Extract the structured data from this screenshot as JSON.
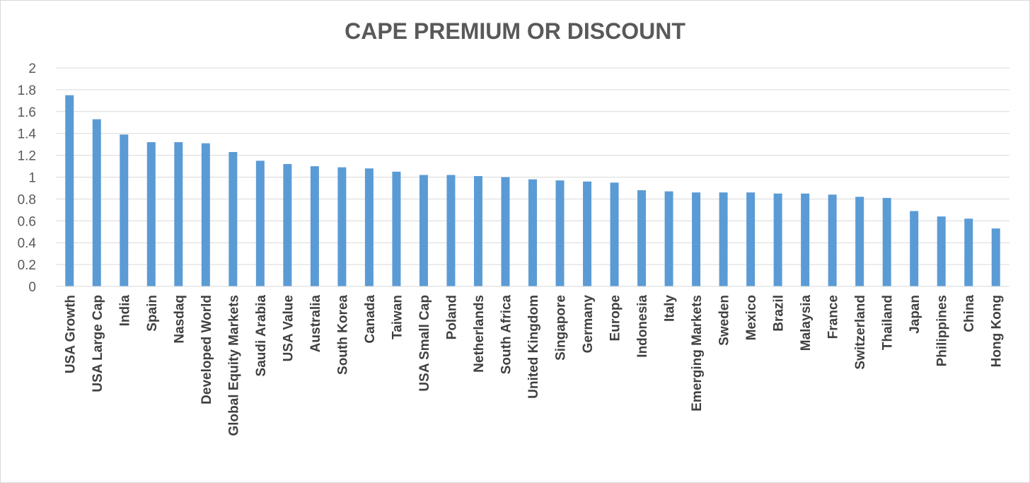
{
  "chart_data": {
    "type": "bar",
    "title": "CAPE PREMIUM OR DISCOUNT",
    "xlabel": "",
    "ylabel": "",
    "ylim": [
      0,
      2
    ],
    "yticks": [
      0,
      0.2,
      0.4,
      0.6,
      0.8,
      1,
      1.2,
      1.4,
      1.6,
      1.8,
      2
    ],
    "ytick_labels": [
      "0",
      "0.2",
      "0.4",
      "0.6",
      "0.8",
      "1",
      "1.2",
      "1.4",
      "1.6",
      "1.8",
      "2"
    ],
    "grid": true,
    "legend": "none",
    "bar_color": "#5b9bd5",
    "gridline_color": "#d9d9d9",
    "categories": [
      "USA Growth",
      "USA Large Cap",
      "India",
      "Spain",
      "Nasdaq",
      "Developed World",
      "Global Equity Markets",
      "Saudi Arabia",
      "USA Value",
      "Australia",
      "South Korea",
      "Canada",
      "Taiwan",
      "USA Small Cap",
      "Poland",
      "Netherlands",
      "South Africa",
      "United Kingdom",
      "Singapore",
      "Germany",
      "Europe",
      "Indonesia",
      "Italy",
      "Emerging Markets",
      "Sweden",
      "Mexico",
      "Brazil",
      "Malaysia",
      "France",
      "Switzerland",
      "Thailand",
      "Japan",
      "Philippines",
      "China",
      "Hong Kong"
    ],
    "values": [
      1.75,
      1.53,
      1.39,
      1.32,
      1.32,
      1.31,
      1.23,
      1.15,
      1.12,
      1.1,
      1.09,
      1.08,
      1.05,
      1.02,
      1.02,
      1.01,
      1.0,
      0.98,
      0.97,
      0.96,
      0.95,
      0.88,
      0.87,
      0.86,
      0.86,
      0.86,
      0.85,
      0.85,
      0.84,
      0.82,
      0.81,
      0.69,
      0.64,
      0.62,
      0.53
    ]
  }
}
